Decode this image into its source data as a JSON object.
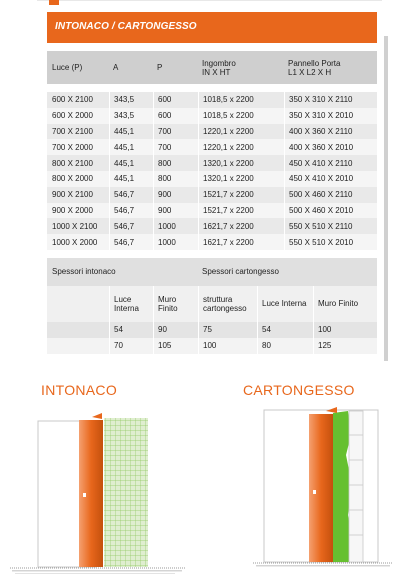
{
  "table": {
    "title": "INTONACO / CARTONGESSO",
    "headers": [
      "Luce (P)",
      "A",
      "P",
      "Ingombro\nIN X HT",
      "Pannello Porta\nL1 X L2 X H"
    ],
    "rows": [
      [
        "600 X 2100",
        "343,5",
        "600",
        "1018,5 x  2200",
        "350 X 310 X 2110"
      ],
      [
        "600 X 2000",
        "343,5",
        "600",
        "1018,5 x  2200",
        "350 X 310 X 2010"
      ],
      [
        "700 X 2100",
        "445,1",
        "700",
        "1220,1 x  2200",
        "400 X 360 X 2110"
      ],
      [
        "700 X 2000",
        "445,1",
        "700",
        "1220,1 x  2200",
        "400 X 360 X 2010"
      ],
      [
        "800 X 2100",
        "445,1",
        "800",
        "1320,1 x  2200",
        "450 X 410 X 2110"
      ],
      [
        "800 X 2000",
        "445,1",
        "800",
        "1320,1 x  2200",
        "450 X 410 X 2010"
      ],
      [
        "900 X 2100",
        "546,7",
        "900",
        "1521,7 x  2200",
        "500 X 460 X 2110"
      ],
      [
        "900 X 2000",
        "546,7",
        "900",
        "1521,7 x  2200",
        "500 X 460 X 2010"
      ],
      [
        "1000 X 2100",
        "546,7",
        "1000",
        "1621,7 x  2200",
        "550 X 510 X 2110"
      ],
      [
        "1000 X 2000",
        "546,7",
        "1000",
        "1621,7 x  2200",
        "550 X 510 X 2010"
      ]
    ],
    "spessori": {
      "intonaco_label": "Spessori intonaco",
      "cartongesso_label": "Spessori cartongesso",
      "sub_headers": [
        "Luce\nInterna",
        "Muro\nFinito",
        "struttura\ncartongesso",
        "Luce Interna",
        "Muro Finito"
      ],
      "rows": [
        [
          "54",
          "90",
          "75",
          "54",
          "100"
        ],
        [
          "70",
          "105",
          "100",
          "80",
          "125"
        ]
      ]
    }
  },
  "diagrams": {
    "left_title": "INTONACO",
    "right_title": "CARTONGESSO"
  },
  "colors": {
    "accent": "#e8671c",
    "green": "#66c030",
    "header_gray": "#cfcfcf"
  }
}
